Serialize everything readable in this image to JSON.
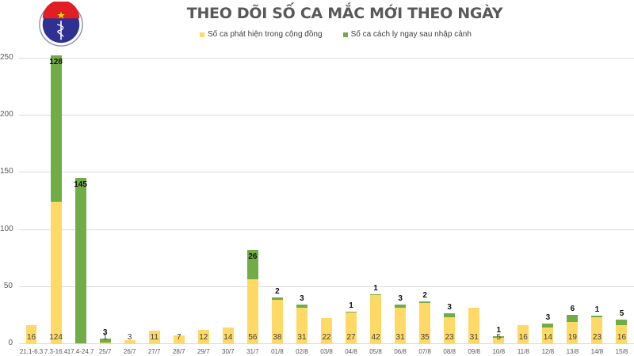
{
  "header": {
    "title": "THEO DÕI SỐ CA MẮC MỚI THEO NGÀY",
    "logo": {
      "top_text": "BỘ Y TẾ",
      "bottom_text": "MINISTRY OF HEALTH",
      "icon": "caduceus-icon"
    }
  },
  "legend": [
    {
      "label": "Số ca phát hiện trong cộng đồng",
      "color": "#FFD966"
    },
    {
      "label": "Số ca cách ly ngay sau nhập cảnh",
      "color": "#70AD47"
    }
  ],
  "chart_data": {
    "type": "bar",
    "stacked": true,
    "title": "THEO DÕI SỐ CA MẮC MỚI THEO NGÀY",
    "xlabel": "",
    "ylabel": "",
    "ylim": [
      0,
      250
    ],
    "yticks": [
      0,
      50,
      100,
      150,
      200,
      250
    ],
    "grid": true,
    "legend_position": "top",
    "categories": [
      "21.1-6.3",
      "7.3-16.4",
      "17.4-24.7",
      "25/7",
      "26/7",
      "27/7",
      "28/7",
      "29/7",
      "30/7",
      "31/7",
      "01/8",
      "02/8",
      "03/8",
      "04/8",
      "05/8",
      "06/8",
      "07/8",
      "08/8",
      "09/8",
      "10/8",
      "11/8",
      "12/8",
      "13/8",
      "14/8",
      "15/8"
    ],
    "series": [
      {
        "name": "Số ca phát hiện trong cộng đồng",
        "color": "#FFD966",
        "values": [
          16,
          124,
          0,
          1,
          3,
          11,
          7,
          12,
          14,
          56,
          38,
          31,
          22,
          27,
          42,
          31,
          35,
          23,
          31,
          5,
          16,
          14,
          19,
          23,
          16
        ]
      },
      {
        "name": "Số ca cách ly ngay sau nhập cảnh",
        "color": "#70AD47",
        "values": [
          0,
          128,
          145,
          3,
          0,
          0,
          0,
          0,
          0,
          26,
          2,
          3,
          0,
          1,
          1,
          3,
          2,
          3,
          0,
          1,
          0,
          3,
          6,
          1,
          5
        ]
      }
    ]
  }
}
